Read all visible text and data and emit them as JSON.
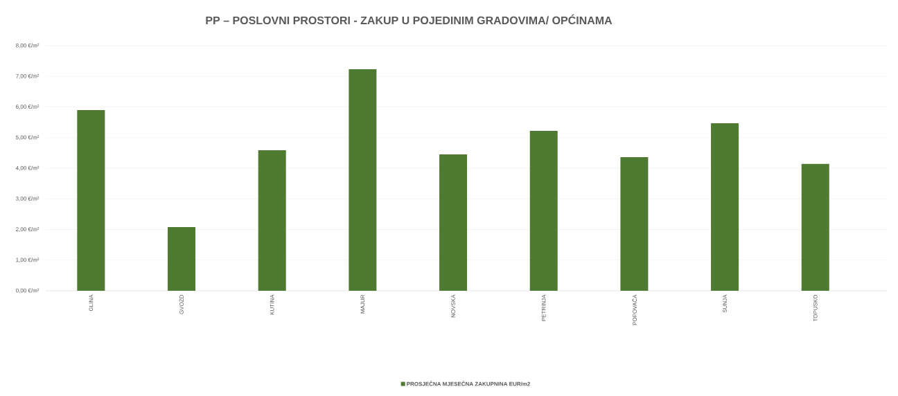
{
  "chart_data": {
    "type": "bar",
    "title": "PP – POSLOVNI PROSTORI - ZAKUP U POJEDINIM GRADOVIMA/ OPĆINAMA",
    "categories": [
      "GLINA",
      "GVOZD",
      "KUTINA",
      "MAJUR",
      "NOVSKA",
      "PETRINJA",
      "POPOVAČA",
      "SUNJA",
      "TOPUSKO"
    ],
    "series": [
      {
        "name": "PROSJEČNA MJESEČNA ZAKUPNINA EUR/m2",
        "color": "#4e7a31",
        "values": [
          5.9,
          2.08,
          4.59,
          7.23,
          4.45,
          5.22,
          4.36,
          5.47,
          4.14
        ]
      }
    ],
    "ylim": [
      0,
      8
    ],
    "yticks": [
      {
        "value": 0,
        "label": "0,00 €/m²"
      },
      {
        "value": 1,
        "label": "1,00 €/m²"
      },
      {
        "value": 2,
        "label": "2,00 €/m²"
      },
      {
        "value": 3,
        "label": "3,00 €/m²"
      },
      {
        "value": 4,
        "label": "4,00 €/m²"
      },
      {
        "value": 5,
        "label": "5,00 €/m²"
      },
      {
        "value": 6,
        "label": "6,00 €/m²"
      },
      {
        "value": 7,
        "label": "7,00 €/m²"
      },
      {
        "value": 8,
        "label": "8,00 €/m²"
      }
    ],
    "grid": "y",
    "legend": "bottom"
  }
}
